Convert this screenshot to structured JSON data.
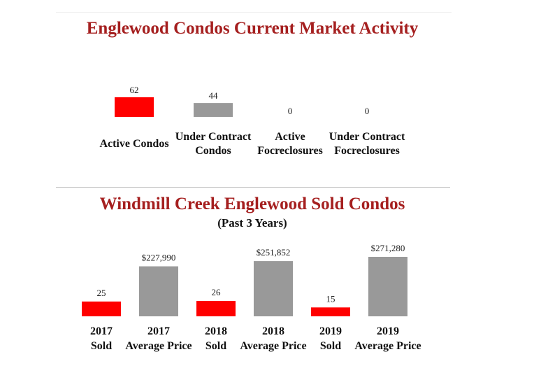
{
  "chart_data": [
    {
      "type": "bar",
      "title": "Englewood Condos Current Market Activity",
      "categories": [
        [
          "Active Condos"
        ],
        [
          "Under Contract",
          "Condos"
        ],
        [
          "Active",
          "Focreclosures"
        ],
        [
          "Under Contract",
          "Focreclosures"
        ]
      ],
      "values": [
        62,
        44,
        0,
        0
      ],
      "value_labels": [
        "62",
        "44",
        "0",
        "0"
      ],
      "colors": [
        "#ff0000",
        "#999999",
        "#ff0000",
        "#999999"
      ],
      "ylim": [
        0,
        62
      ],
      "grid": false
    },
    {
      "type": "bar",
      "title": "Windmill Creek Englewood Sold Condos",
      "subtitle": "(Past 3 Years)",
      "categories": [
        [
          "2017",
          "Sold"
        ],
        [
          "2017",
          "Average Price"
        ],
        [
          "2018",
          "Sold"
        ],
        [
          "2018",
          "Average Price"
        ],
        [
          "2019",
          "Sold"
        ],
        [
          "2019",
          "Average Price"
        ]
      ],
      "values": [
        25,
        227990,
        26,
        251852,
        15,
        271280
      ],
      "value_labels": [
        "25",
        "$227,990",
        "26",
        "$251,852",
        "15",
        "$271,280"
      ],
      "colors": [
        "#ff0000",
        "#999999",
        "#ff0000",
        "#999999",
        "#ff0000",
        "#999999"
      ],
      "grid": false
    }
  ]
}
